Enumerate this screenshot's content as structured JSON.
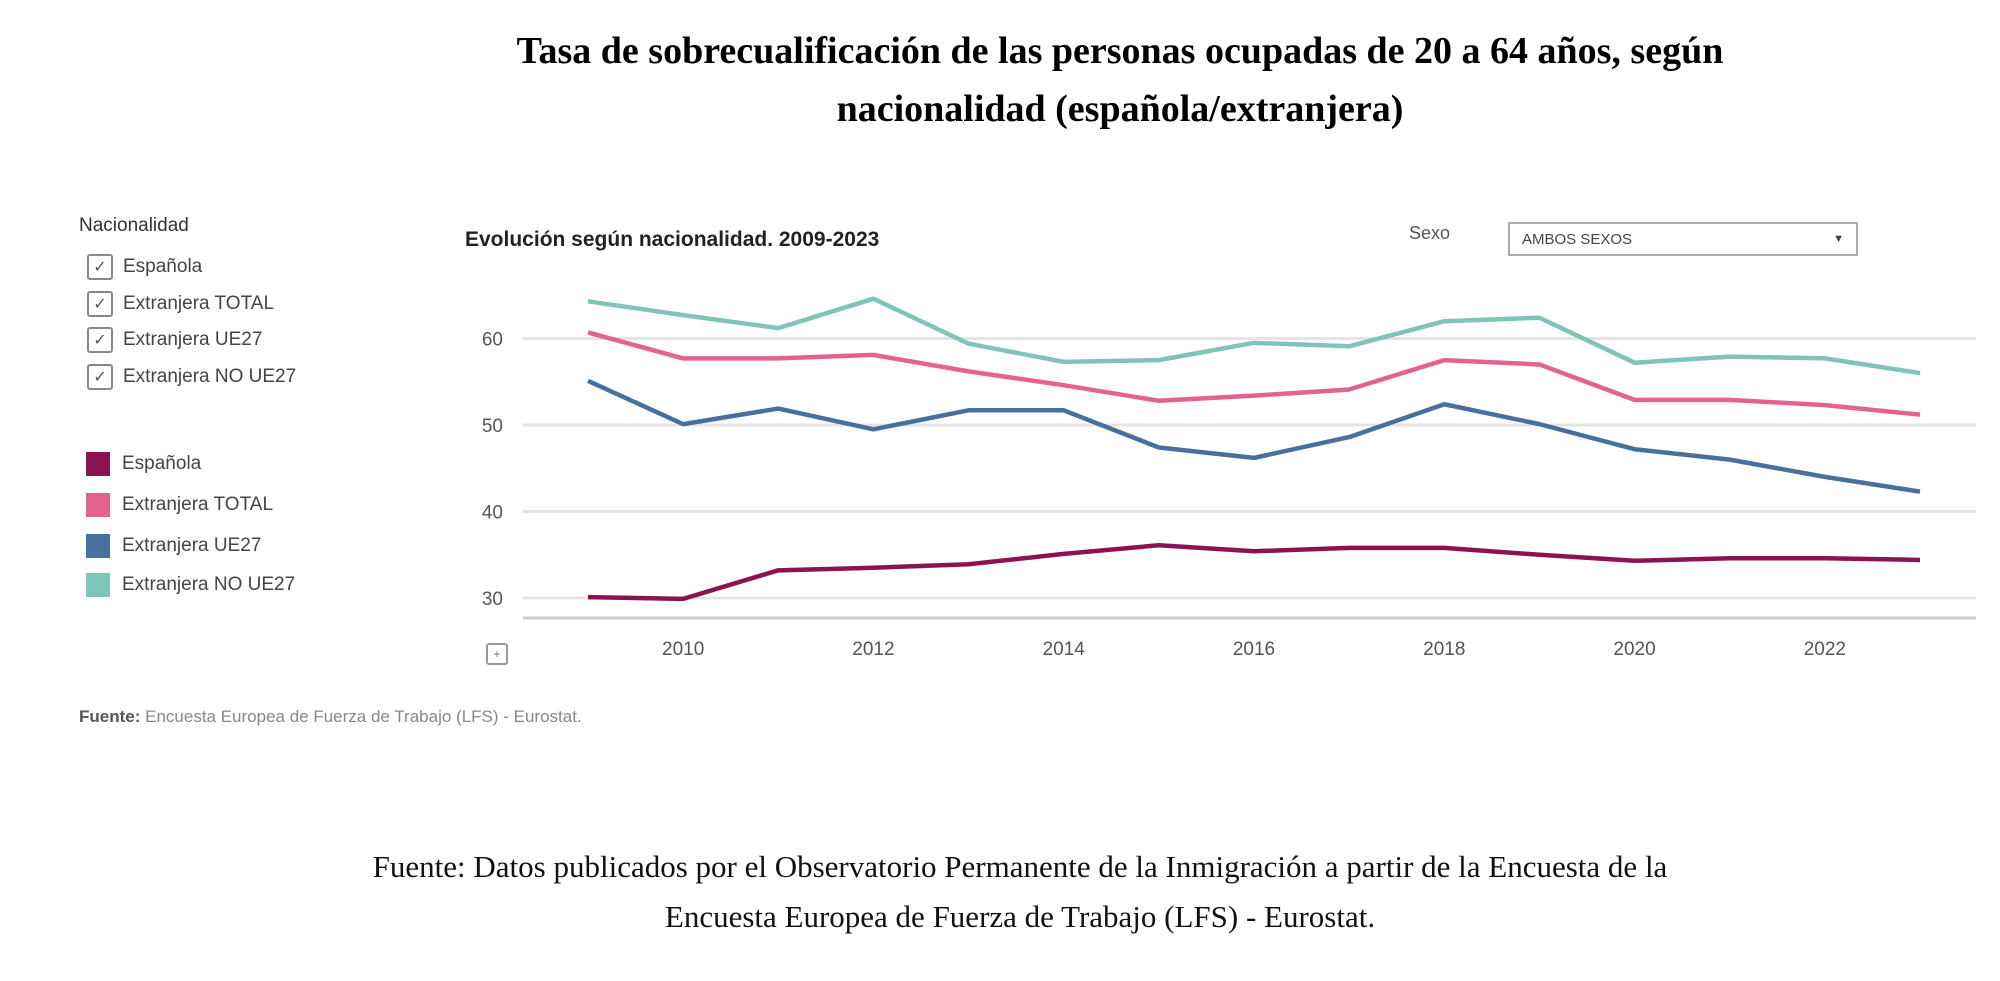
{
  "title_lines": [
    "Tasa de sobrecualificación de las personas ocupadas de 20 a 64 años, según",
    "nacionalidad (española/extranjera)"
  ],
  "filter": {
    "heading": "Nacionalidad",
    "checkboxes": [
      {
        "label": "Española",
        "checked": true
      },
      {
        "label": "Extranjera TOTAL",
        "checked": true
      },
      {
        "label": "Extranjera UE27",
        "checked": true
      },
      {
        "label": "Extranjera NO UE27",
        "checked": true
      }
    ],
    "check_glyph": "✓"
  },
  "sexo": {
    "label": "Sexo",
    "selected": "AMBOS SEXOS",
    "arrow": "▼"
  },
  "expand_glyph": "+",
  "source_inner": {
    "bold": "Fuente:",
    "text": " Encuesta Europea de Fuerza de Trabajo (LFS) - Eurostat."
  },
  "caption_lines": [
    "Fuente: Datos publicados por el Observatorio Permanente de la Inmigración a partir de la Encuesta de la",
    "Encuesta Europea de Fuerza de Trabajo (LFS) - Eurostat."
  ],
  "chart_data": {
    "type": "line",
    "title": "Evolución según nacionalidad. 2009-2023",
    "xlabel": "",
    "ylabel": "",
    "x": [
      2009,
      2010,
      2011,
      2012,
      2013,
      2014,
      2015,
      2016,
      2017,
      2018,
      2019,
      2020,
      2021,
      2022,
      2023
    ],
    "x_ticks": [
      2010,
      2012,
      2014,
      2016,
      2018,
      2020,
      2022
    ],
    "y_ticks": [
      30,
      40,
      50,
      60
    ],
    "ylim": [
      27.5,
      66
    ],
    "grid": true,
    "legend_position": "left",
    "series": [
      {
        "name": "Española",
        "color": "#8b1450",
        "values": [
          30.1,
          29.9,
          33.2,
          33.5,
          33.9,
          35.1,
          36.1,
          35.4,
          35.8,
          35.8,
          35.0,
          34.3,
          34.6,
          34.6,
          34.4
        ]
      },
      {
        "name": "Extranjera TOTAL",
        "color": "#e6628e",
        "values": [
          60.7,
          57.7,
          57.7,
          58.1,
          56.2,
          54.6,
          52.8,
          53.4,
          54.1,
          57.5,
          57.0,
          52.9,
          52.9,
          52.3,
          51.2
        ]
      },
      {
        "name": "Extranjera UE27",
        "color": "#46709e",
        "values": [
          55.1,
          50.1,
          51.9,
          49.5,
          51.7,
          51.7,
          47.4,
          46.2,
          48.6,
          52.4,
          50.1,
          47.2,
          46.0,
          44.0,
          42.3
        ]
      },
      {
        "name": "Extranjera NO UE27",
        "color": "#7ec4b8",
        "values": [
          64.3,
          62.7,
          61.2,
          64.6,
          59.4,
          57.3,
          57.5,
          59.5,
          59.1,
          62.0,
          62.4,
          57.2,
          57.9,
          57.7,
          56.0
        ]
      }
    ]
  }
}
